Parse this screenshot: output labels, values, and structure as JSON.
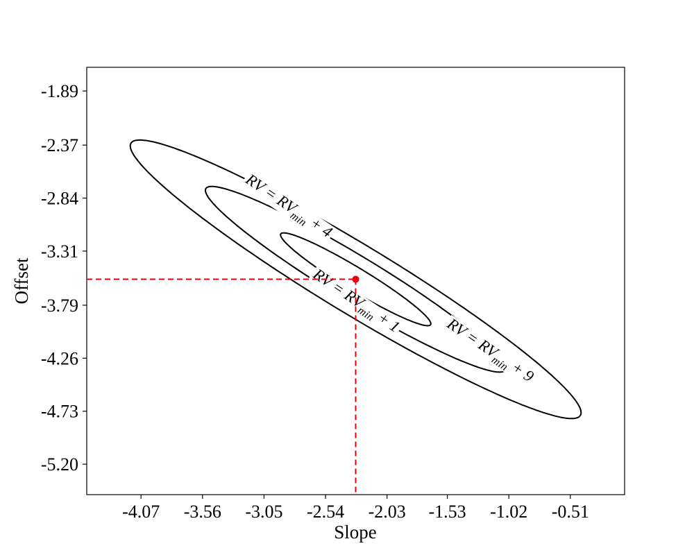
{
  "chart_data": {
    "type": "contour",
    "xlabel": "Slope",
    "ylabel": "Offset",
    "xlim": [
      -4.52,
      -0.06
    ],
    "ylim": [
      -5.47,
      -1.68
    ],
    "x_ticks": [
      "-4.07",
      "-3.56",
      "-3.05",
      "-2.54",
      "-2.03",
      "-1.53",
      "-1.02",
      "-0.51"
    ],
    "y_ticks": [
      "-1.89",
      "-2.37",
      "-2.84",
      "-3.31",
      "-3.79",
      "-4.26",
      "-4.73",
      "-5.20"
    ],
    "minimum": {
      "slope": -2.29,
      "offset": -3.56
    },
    "contours": [
      {
        "label_main": "RV = RV",
        "label_sub": "min",
        "label_tail": " + 1",
        "center": {
          "slope": -2.29,
          "offset": -3.56
        },
        "semi_major": 0.74,
        "semi_minor": 0.1,
        "angle_deg": -33,
        "label_pos": {
          "slope": -2.29,
          "offset": -3.76
        }
      },
      {
        "label_main": "RV = RV",
        "label_sub": "min",
        "label_tail": " + 4",
        "center": {
          "slope": -2.29,
          "offset": -3.56
        },
        "semi_major": 1.48,
        "semi_minor": 0.2,
        "angle_deg": -33,
        "label_pos": {
          "slope": -2.85,
          "offset": -2.92
        }
      },
      {
        "label_main": "RV = RV",
        "label_sub": "min",
        "label_tail": " + 9",
        "center": {
          "slope": -2.29,
          "offset": -3.56
        },
        "semi_major": 2.22,
        "semi_minor": 0.3,
        "angle_deg": -33,
        "label_pos": {
          "slope": -1.18,
          "offset": -4.2
        }
      }
    ],
    "colors": {
      "contour": "#000000",
      "guide": "#e8000b",
      "minimum": "#e8000b"
    }
  }
}
